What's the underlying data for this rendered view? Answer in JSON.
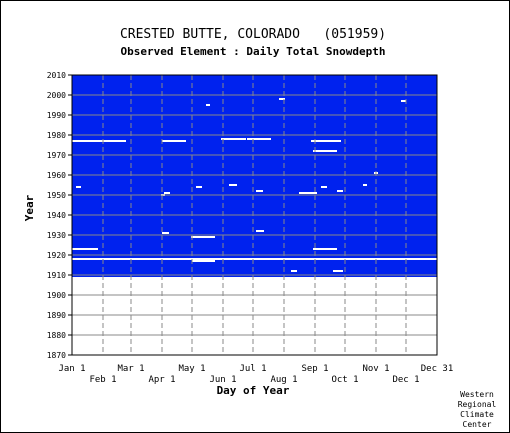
{
  "chart_data": {
    "type": "heatmap",
    "title": "CRESTED BUTTE, COLORADO   (051959)",
    "subtitle": "Observed Element : Daily Total Snowdepth",
    "xlabel": "Day of Year",
    "ylabel": "Year",
    "xlim": [
      1,
      366
    ],
    "ylim": [
      1870,
      2010
    ],
    "x_ticks_top": [
      "Jan 1",
      "Mar 1",
      "May 1",
      "Jul 1",
      "Sep 1",
      "Nov 1",
      "Dec 31"
    ],
    "x_ticks_top_days": [
      1,
      60,
      121,
      182,
      244,
      305,
      366
    ],
    "x_ticks_bottom": [
      "Feb 1",
      "Apr 1",
      "Jun 1",
      "Aug 1",
      "Oct 1",
      "Dec 1"
    ],
    "x_ticks_bottom_days": [
      32,
      91,
      152,
      213,
      274,
      335
    ],
    "y_ticks": [
      2010,
      2000,
      1990,
      1980,
      1970,
      1960,
      1950,
      1940,
      1930,
      1920,
      1910,
      1900,
      1890,
      1880,
      1870
    ],
    "grid": true,
    "colors": {
      "observed": "#0022ee",
      "missing": "#ffffff",
      "grid": "#888888"
    },
    "series": [
      {
        "values": [
          {
            "year_start": 1909,
            "year_end": 2010,
            "status": "observed"
          }
        ]
      },
      {
        "name": "",
        "values": [
          {
            "year": 1977,
            "day_start": 1,
            "day_end": 55
          },
          {
            "year": 1977,
            "day_start": 240,
            "day_end": 270
          },
          {
            "year": 1977,
            "day_start": 91,
            "day_end": 115
          },
          {
            "year": 1978,
            "day_start": 150,
            "day_end": 175
          },
          {
            "year": 1978,
            "day_start": 176,
            "day_end": 200
          },
          {
            "year": 1972,
            "day_start": 242,
            "day_end": 266
          },
          {
            "year": 1951,
            "day_start": 228,
            "day_end": 246
          },
          {
            "year": 1929,
            "day_start": 120,
            "day_end": 144
          },
          {
            "year": 1923,
            "day_start": 1,
            "day_end": 27
          },
          {
            "year": 1923,
            "day_start": 242,
            "day_end": 266
          },
          {
            "year": 1918,
            "day_start": 1,
            "day_end": 366
          },
          {
            "year": 1917,
            "day_start": 121,
            "day_end": 144
          },
          {
            "year": 1932,
            "day_start": 185,
            "day_end": 193
          },
          {
            "year": 1931,
            "day_start": 91,
            "day_end": 98
          },
          {
            "year": 1954,
            "day_start": 125,
            "day_end": 131
          },
          {
            "year": 1954,
            "day_start": 5,
            "day_end": 10
          },
          {
            "year": 1955,
            "day_start": 158,
            "day_end": 166
          },
          {
            "year": 1952,
            "day_start": 185,
            "day_end": 192
          },
          {
            "year": 1952,
            "day_start": 266,
            "day_end": 272
          },
          {
            "year": 1951,
            "day_start": 93,
            "day_end": 99
          },
          {
            "year": 1950,
            "day_start": 90,
            "day_end": 94
          },
          {
            "year": 1912,
            "day_start": 220,
            "day_end": 226
          },
          {
            "year": 1912,
            "day_start": 262,
            "day_end": 272
          },
          {
            "year": 1955,
            "day_start": 292,
            "day_end": 296
          },
          {
            "year": 1961,
            "day_start": 303,
            "day_end": 307
          },
          {
            "year": 1954,
            "day_start": 250,
            "day_end": 256
          },
          {
            "year": 1995,
            "day_start": 135,
            "day_end": 139
          },
          {
            "year": 1998,
            "day_start": 208,
            "day_end": 214
          },
          {
            "year": 1997,
            "day_start": 330,
            "day_end": 335
          }
        ]
      }
    ]
  },
  "footer": {
    "credit_lines": [
      "Western",
      "Regional",
      "Climate",
      "Center"
    ]
  }
}
